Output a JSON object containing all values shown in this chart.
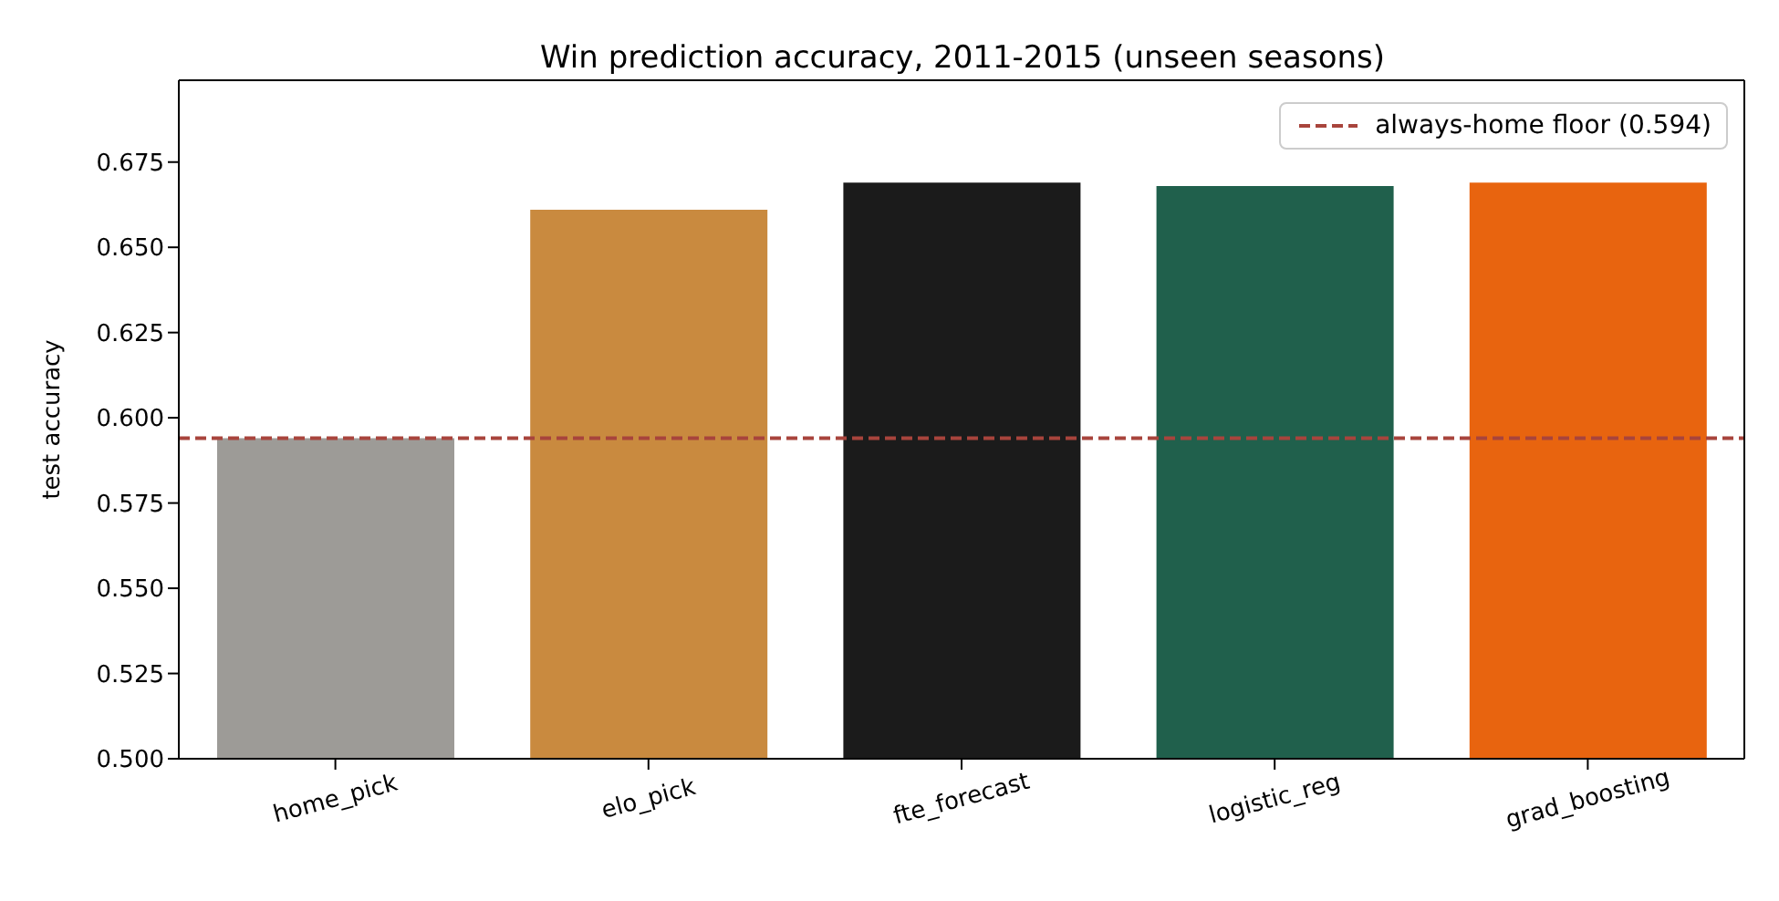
{
  "chart_data": {
    "type": "bar",
    "title": "Win prediction accuracy, 2011-2015 (unseen seasons)",
    "ylabel": "test accuracy",
    "categories": [
      "home_pick",
      "elo_pick",
      "fte_forecast",
      "logistic_reg",
      "grad_boosting"
    ],
    "values": [
      0.594,
      0.661,
      0.669,
      0.668,
      0.669
    ],
    "colors": [
      "#9d9b97",
      "#c98a3f",
      "#1b1b1b",
      "#20604c",
      "#e8640f"
    ],
    "ylim": [
      0.5,
      0.699
    ],
    "yticks": [
      {
        "value": 0.5,
        "label": "0.500"
      },
      0.525,
      {
        "value": 0.55,
        "label": "0.550"
      },
      0.575,
      {
        "value": 0.6,
        "label": "0.600"
      },
      0.625,
      {
        "value": 0.65,
        "label": "0.650"
      },
      0.675
    ],
    "ref_lines": [
      {
        "axis": "y",
        "value": 0.594,
        "label": "always-home floor (0.594)",
        "color": "#a8443c",
        "line_style": "dashed"
      }
    ],
    "legend": "top right"
  }
}
